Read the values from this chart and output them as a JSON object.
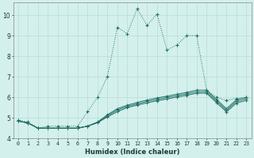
{
  "xlabel": "Humidex (Indice chaleur)",
  "ylabel": "",
  "bg_color": "#d4f0ec",
  "grid_color": "#b8dcd6",
  "line_color": "#1e6e64",
  "xlim": [
    -0.5,
    23.5
  ],
  "ylim": [
    4,
    10.6
  ],
  "xticks": [
    0,
    1,
    2,
    3,
    4,
    5,
    6,
    7,
    8,
    9,
    10,
    11,
    12,
    13,
    14,
    15,
    16,
    17,
    18,
    19,
    20,
    21,
    22,
    23
  ],
  "yticks": [
    4,
    5,
    6,
    7,
    8,
    9,
    10
  ],
  "series0": [
    4.9,
    4.8,
    4.5,
    4.6,
    4.6,
    4.6,
    4.6,
    5.3,
    6.0,
    7.0,
    9.4,
    9.1,
    10.3,
    9.5,
    10.05,
    8.3,
    8.55,
    9.0,
    9.0,
    6.35,
    6.0,
    5.85,
    5.95,
    6.0
  ],
  "series1": [
    4.85,
    4.75,
    4.5,
    4.5,
    4.5,
    4.5,
    4.5,
    4.6,
    4.8,
    5.15,
    5.45,
    5.62,
    5.75,
    5.87,
    5.97,
    6.06,
    6.15,
    6.24,
    6.35,
    6.35,
    5.9,
    5.45,
    5.88,
    6.0
  ],
  "series2": [
    4.85,
    4.75,
    4.5,
    4.5,
    4.5,
    4.5,
    4.5,
    4.6,
    4.78,
    5.1,
    5.38,
    5.56,
    5.68,
    5.8,
    5.9,
    5.99,
    6.08,
    6.17,
    6.27,
    6.27,
    5.82,
    5.37,
    5.8,
    5.93
  ],
  "series3": [
    4.85,
    4.75,
    4.5,
    4.5,
    4.5,
    4.5,
    4.5,
    4.6,
    4.76,
    5.05,
    5.3,
    5.5,
    5.62,
    5.73,
    5.83,
    5.92,
    6.01,
    6.1,
    6.2,
    6.2,
    5.74,
    5.29,
    5.72,
    5.85
  ]
}
